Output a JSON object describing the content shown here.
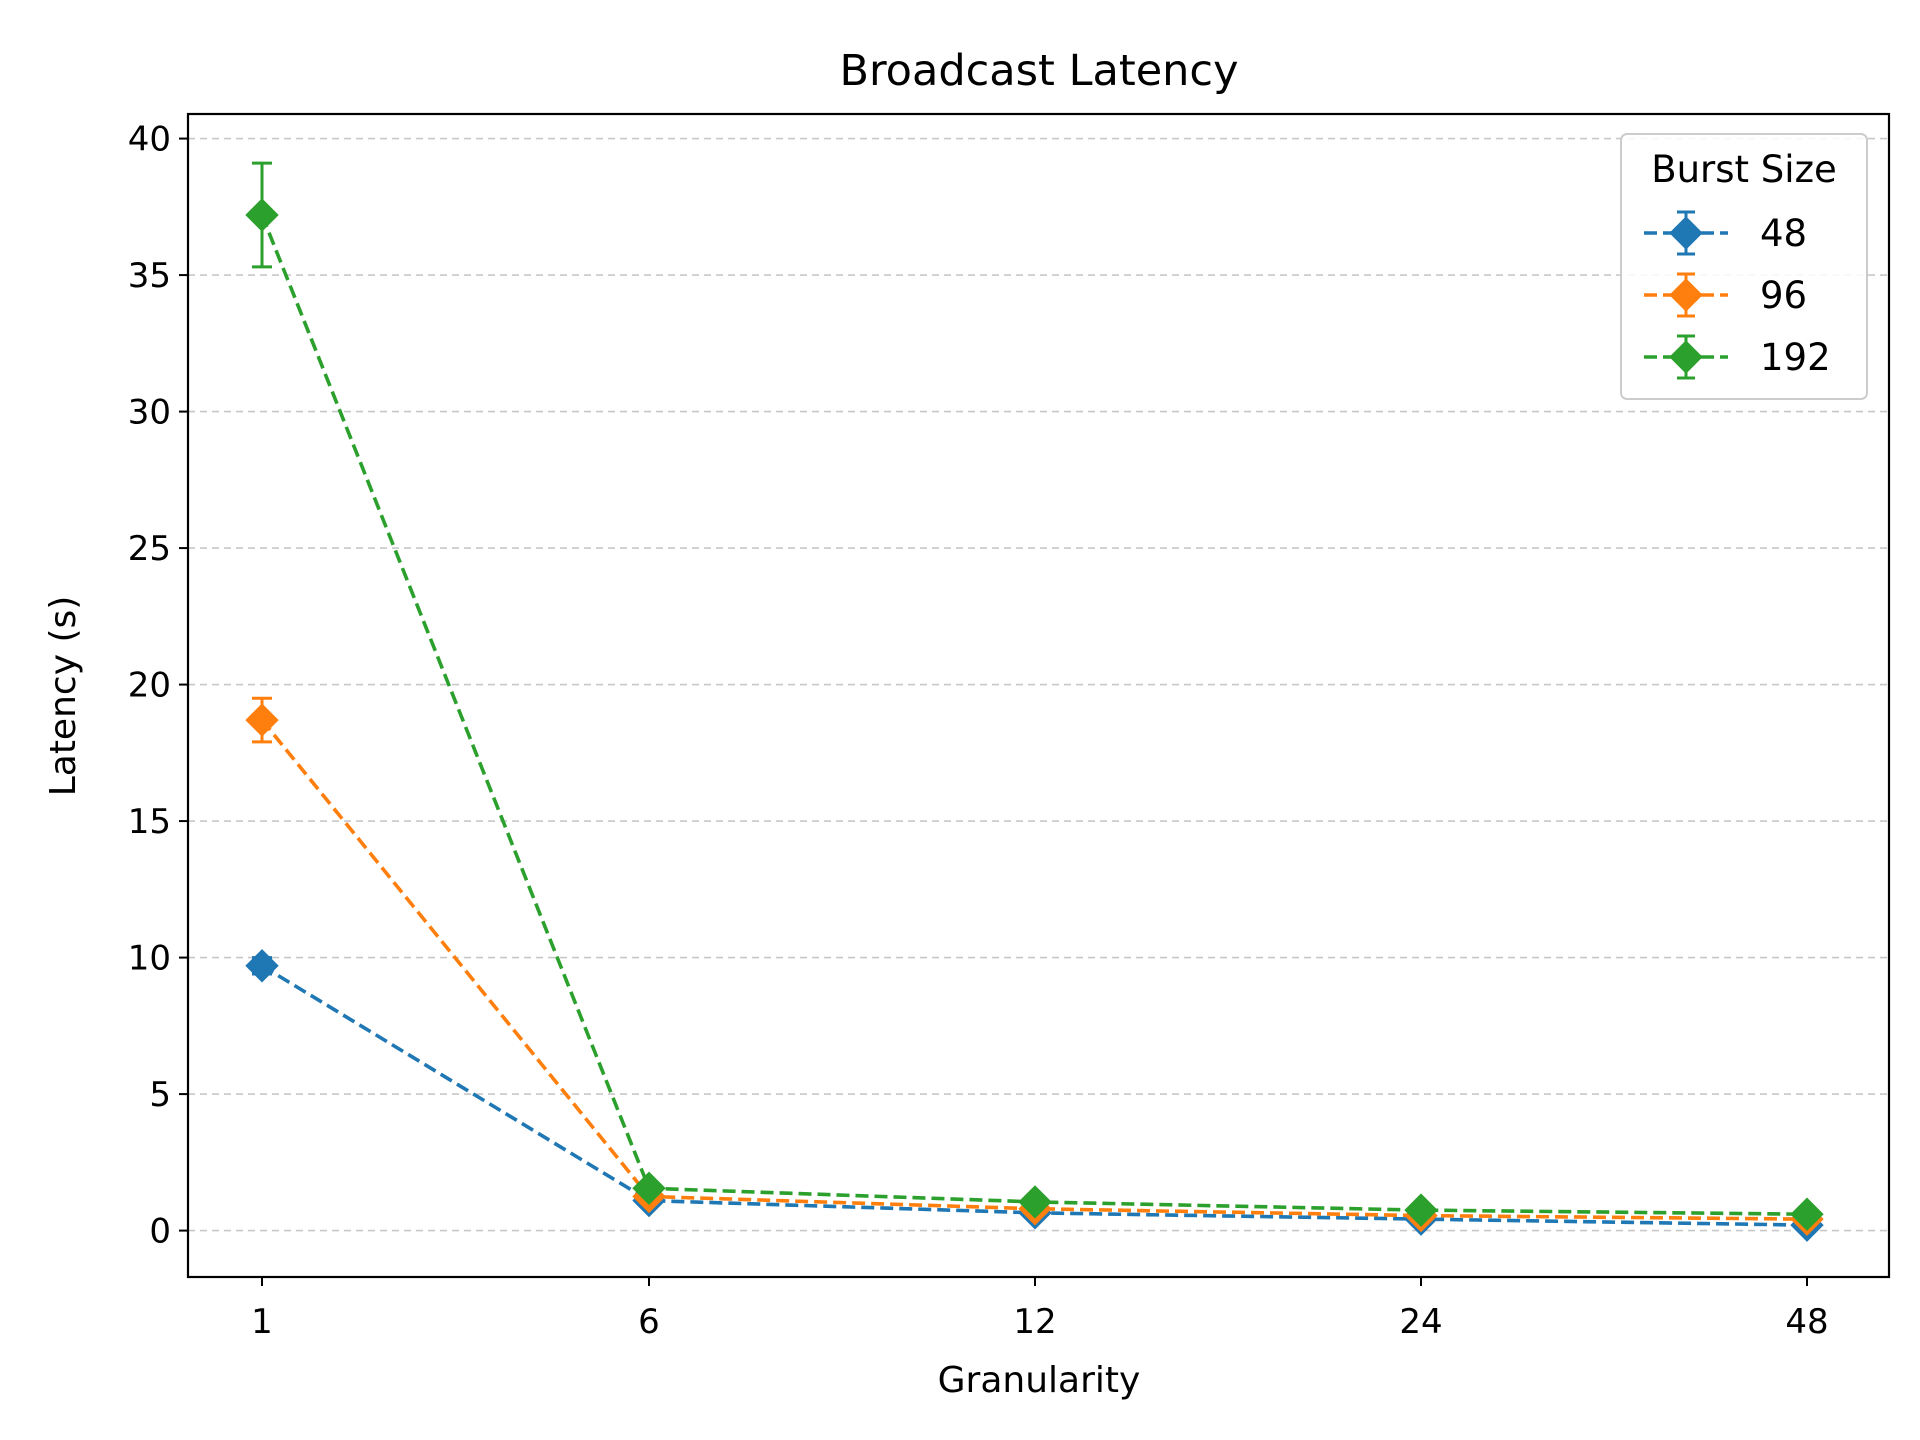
{
  "chart_data": {
    "type": "line",
    "title": "Broadcast Latency",
    "xlabel": "Granularity",
    "ylabel": "Latency (s)",
    "categories": [
      "1",
      "6",
      "12",
      "24",
      "48"
    ],
    "ylim": [
      -1.7,
      40.9
    ],
    "yticks": [
      "0",
      "5",
      "10",
      "15",
      "20",
      "25",
      "30",
      "35",
      "40"
    ],
    "ytick_values": [
      0,
      5,
      10,
      15,
      20,
      25,
      30,
      35,
      40
    ],
    "grid": "y-dashed",
    "legend": {
      "title": "Burst Size",
      "placement": "top-right"
    },
    "marker": "diamond",
    "linestyle": "dashed",
    "series": [
      {
        "name": "48",
        "color": "#1f77b4",
        "values": [
          9.7,
          1.1,
          0.65,
          0.42,
          0.2
        ],
        "errors": [
          0.3,
          0.1,
          0.05,
          0.05,
          0.05
        ]
      },
      {
        "name": "96",
        "color": "#ff7f0e",
        "values": [
          18.7,
          1.25,
          0.8,
          0.55,
          0.42
        ],
        "errors": [
          0.8,
          0.1,
          0.05,
          0.05,
          0.05
        ]
      },
      {
        "name": "192",
        "color": "#2ca02c",
        "values": [
          37.2,
          1.55,
          1.05,
          0.75,
          0.6
        ],
        "errors": [
          1.9,
          0.1,
          0.05,
          0.05,
          0.05
        ]
      }
    ]
  }
}
